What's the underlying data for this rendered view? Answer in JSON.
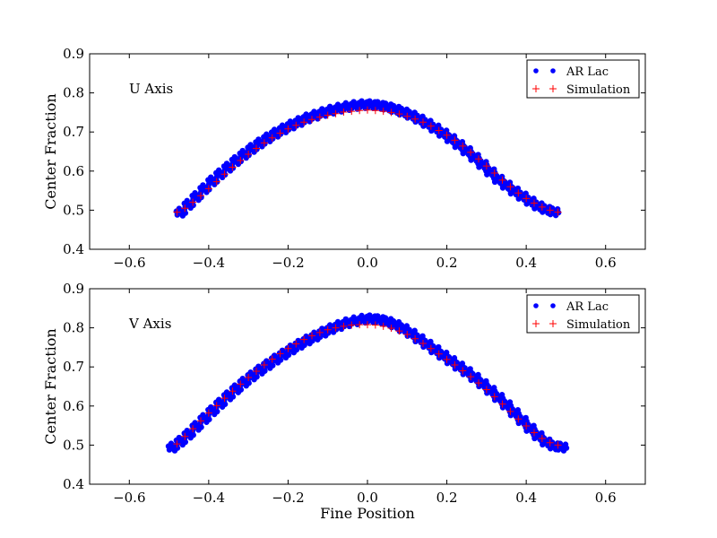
{
  "chart_data": [
    {
      "type": "scatter",
      "title": "",
      "annotation": "U Axis",
      "xlabel": "",
      "ylabel": "Center Fraction",
      "xlim": [
        -0.7,
        0.7
      ],
      "ylim": [
        0.4,
        0.9
      ],
      "xticks": [
        -0.6,
        -0.4,
        -0.2,
        0.0,
        0.2,
        0.4,
        0.6
      ],
      "xtick_labels": [
        "−0.6",
        "−0.4",
        "−0.2",
        "0.0",
        "0.2",
        "0.4",
        "0.6"
      ],
      "yticks": [
        0.4,
        0.5,
        0.6,
        0.7,
        0.8,
        0.9
      ],
      "ytick_labels": [
        "0.4",
        "0.5",
        "0.6",
        "0.7",
        "0.8",
        "0.9"
      ],
      "grid": false,
      "legend_position": "top-right",
      "series": [
        {
          "name": "AR Lac",
          "marker": "dot",
          "color": "#0000ff",
          "x": [
            -0.47,
            -0.45,
            -0.43,
            -0.41,
            -0.39,
            -0.37,
            -0.35,
            -0.33,
            -0.31,
            -0.29,
            -0.27,
            -0.25,
            -0.23,
            -0.21,
            -0.19,
            -0.17,
            -0.15,
            -0.13,
            -0.11,
            -0.09,
            -0.07,
            -0.05,
            -0.03,
            -0.01,
            0.01,
            0.03,
            0.05,
            0.07,
            0.09,
            0.11,
            0.13,
            0.15,
            0.17,
            0.19,
            0.21,
            0.23,
            0.25,
            0.27,
            0.29,
            0.31,
            0.33,
            0.35,
            0.37,
            0.39,
            0.41,
            0.43,
            0.45,
            0.47
          ],
          "y": [
            0.495,
            0.515,
            0.535,
            0.555,
            0.575,
            0.593,
            0.61,
            0.627,
            0.643,
            0.658,
            0.672,
            0.685,
            0.697,
            0.708,
            0.718,
            0.727,
            0.736,
            0.743,
            0.75,
            0.756,
            0.761,
            0.765,
            0.768,
            0.77,
            0.77,
            0.768,
            0.764,
            0.758,
            0.751,
            0.743,
            0.733,
            0.722,
            0.71,
            0.697,
            0.683,
            0.668,
            0.652,
            0.635,
            0.617,
            0.598,
            0.579,
            0.564,
            0.549,
            0.536,
            0.523,
            0.511,
            0.502,
            0.496
          ]
        },
        {
          "name": "Simulation",
          "marker": "plus",
          "color": "#ff0000",
          "x": [
            -0.48,
            -0.46,
            -0.44,
            -0.42,
            -0.4,
            -0.38,
            -0.36,
            -0.34,
            -0.32,
            -0.3,
            -0.28,
            -0.26,
            -0.24,
            -0.22,
            -0.2,
            -0.18,
            -0.16,
            -0.14,
            -0.12,
            -0.1,
            -0.08,
            -0.06,
            -0.04,
            -0.02,
            0.0,
            0.02,
            0.04,
            0.06,
            0.08,
            0.1,
            0.12,
            0.14,
            0.16,
            0.18,
            0.2,
            0.22,
            0.24,
            0.26,
            0.28,
            0.3,
            0.32,
            0.34,
            0.36,
            0.38,
            0.4,
            0.42,
            0.44,
            0.46,
            0.48
          ],
          "y": [
            0.495,
            0.505,
            0.52,
            0.537,
            0.555,
            0.573,
            0.592,
            0.61,
            0.627,
            0.643,
            0.658,
            0.672,
            0.685,
            0.697,
            0.708,
            0.717,
            0.725,
            0.732,
            0.738,
            0.743,
            0.747,
            0.751,
            0.753,
            0.755,
            0.756,
            0.755,
            0.753,
            0.75,
            0.746,
            0.74,
            0.733,
            0.725,
            0.715,
            0.704,
            0.692,
            0.679,
            0.664,
            0.648,
            0.631,
            0.613,
            0.595,
            0.577,
            0.56,
            0.544,
            0.53,
            0.518,
            0.508,
            0.5,
            0.495
          ]
        }
      ]
    },
    {
      "type": "scatter",
      "title": "",
      "annotation": "V Axis",
      "xlabel": "Fine Position",
      "ylabel": "Center Fraction",
      "xlim": [
        -0.7,
        0.7
      ],
      "ylim": [
        0.4,
        0.9
      ],
      "xticks": [
        -0.6,
        -0.4,
        -0.2,
        0.0,
        0.2,
        0.4,
        0.6
      ],
      "xtick_labels": [
        "−0.6",
        "−0.4",
        "−0.2",
        "0.0",
        "0.2",
        "0.4",
        "0.6"
      ],
      "yticks": [
        0.4,
        0.5,
        0.6,
        0.7,
        0.8,
        0.9
      ],
      "ytick_labels": [
        "0.4",
        "0.5",
        "0.6",
        "0.7",
        "0.8",
        "0.9"
      ],
      "grid": false,
      "legend_position": "top-right",
      "series": [
        {
          "name": "AR Lac",
          "marker": "dot",
          "color": "#0000ff",
          "x": [
            -0.49,
            -0.47,
            -0.45,
            -0.43,
            -0.41,
            -0.39,
            -0.37,
            -0.35,
            -0.33,
            -0.31,
            -0.29,
            -0.27,
            -0.25,
            -0.23,
            -0.21,
            -0.19,
            -0.17,
            -0.15,
            -0.13,
            -0.11,
            -0.09,
            -0.07,
            -0.05,
            -0.03,
            -0.01,
            0.01,
            0.03,
            0.05,
            0.07,
            0.09,
            0.11,
            0.13,
            0.15,
            0.17,
            0.19,
            0.21,
            0.23,
            0.25,
            0.27,
            0.29,
            0.31,
            0.33,
            0.35,
            0.37,
            0.39,
            0.41,
            0.43,
            0.45,
            0.47,
            0.49
          ],
          "y": [
            0.495,
            0.51,
            0.528,
            0.548,
            0.568,
            0.588,
            0.607,
            0.626,
            0.644,
            0.661,
            0.677,
            0.692,
            0.706,
            0.72,
            0.733,
            0.746,
            0.758,
            0.769,
            0.779,
            0.789,
            0.798,
            0.806,
            0.813,
            0.818,
            0.822,
            0.823,
            0.821,
            0.816,
            0.808,
            0.798,
            0.786,
            0.772,
            0.758,
            0.744,
            0.73,
            0.716,
            0.702,
            0.688,
            0.673,
            0.657,
            0.64,
            0.622,
            0.603,
            0.583,
            0.563,
            0.543,
            0.524,
            0.508,
            0.498,
            0.495
          ]
        },
        {
          "name": "Simulation",
          "marker": "plus",
          "color": "#ff0000",
          "x": [
            -0.48,
            -0.46,
            -0.44,
            -0.42,
            -0.4,
            -0.38,
            -0.36,
            -0.34,
            -0.32,
            -0.3,
            -0.28,
            -0.26,
            -0.24,
            -0.22,
            -0.2,
            -0.18,
            -0.16,
            -0.14,
            -0.12,
            -0.1,
            -0.08,
            -0.06,
            -0.04,
            -0.02,
            0.0,
            0.02,
            0.04,
            0.06,
            0.08,
            0.1,
            0.12,
            0.14,
            0.16,
            0.18,
            0.2,
            0.22,
            0.24,
            0.26,
            0.28,
            0.3,
            0.32,
            0.34,
            0.36,
            0.38,
            0.4,
            0.42,
            0.44,
            0.46,
            0.48
          ],
          "y": [
            0.503,
            0.522,
            0.542,
            0.562,
            0.582,
            0.601,
            0.62,
            0.638,
            0.656,
            0.673,
            0.689,
            0.705,
            0.72,
            0.734,
            0.747,
            0.759,
            0.77,
            0.78,
            0.788,
            0.795,
            0.8,
            0.804,
            0.807,
            0.808,
            0.808,
            0.807,
            0.804,
            0.799,
            0.792,
            0.783,
            0.772,
            0.76,
            0.747,
            0.733,
            0.719,
            0.705,
            0.69,
            0.675,
            0.659,
            0.642,
            0.624,
            0.605,
            0.586,
            0.567,
            0.549,
            0.532,
            0.517,
            0.506,
            0.5
          ]
        }
      ]
    }
  ]
}
